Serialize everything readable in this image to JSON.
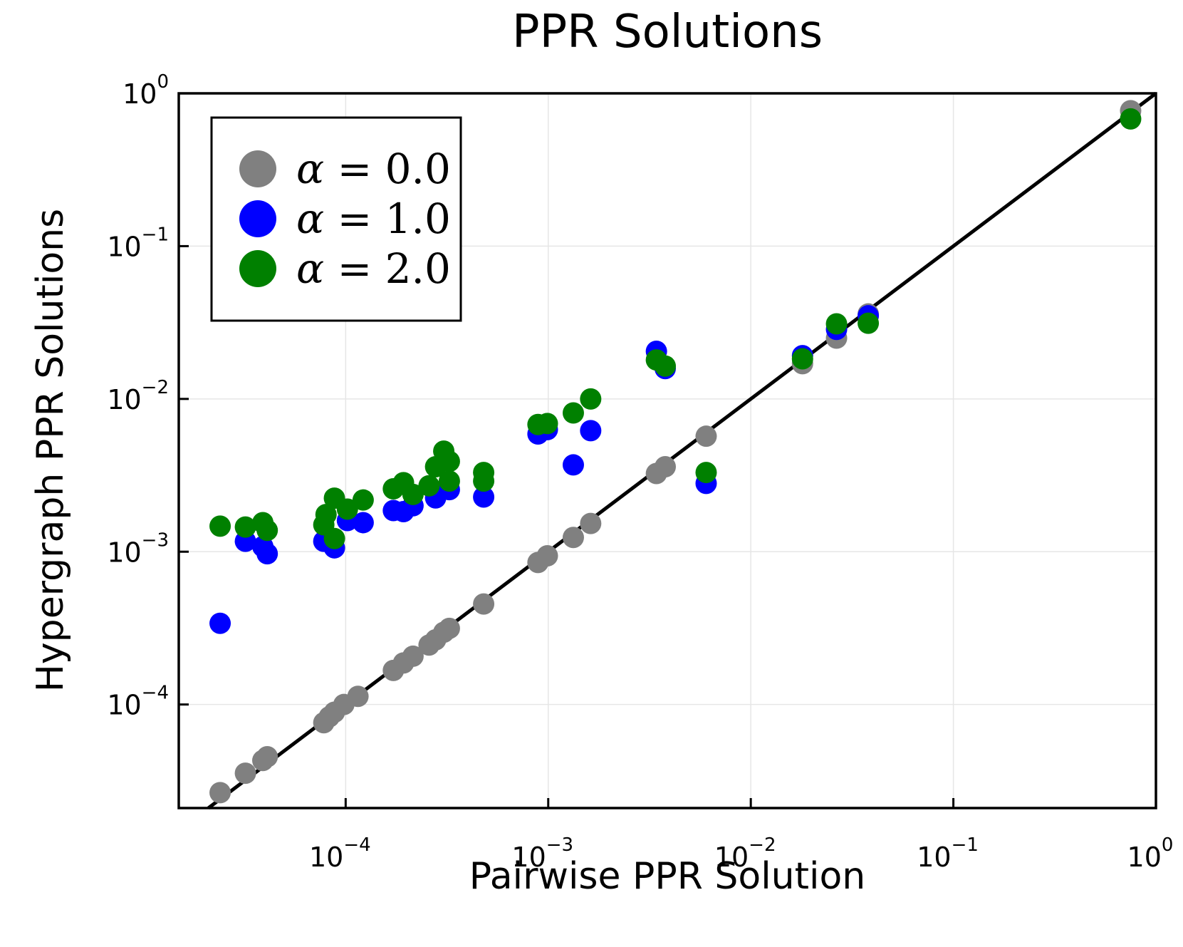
{
  "chart_data": {
    "type": "scatter",
    "title": "PPR Solutions",
    "xlabel": "Pairwise PPR Solution",
    "ylabel": "Hypergraph PPR Solutions",
    "xscale": "log",
    "yscale": "log",
    "xlim": [
      1.5e-05,
      1.0
    ],
    "ylim": [
      2.1e-05,
      1.0
    ],
    "grid": true,
    "legend_position": "top-left",
    "x_ticks": [
      {
        "base": "10",
        "exp": "−4",
        "value": 0.0001
      },
      {
        "base": "10",
        "exp": "−3",
        "value": 0.001
      },
      {
        "base": "10",
        "exp": "−2",
        "value": 0.01
      },
      {
        "base": "10",
        "exp": "−1",
        "value": 0.1
      },
      {
        "base": "10",
        "exp": "0",
        "value": 1.0
      }
    ],
    "y_ticks": [
      {
        "base": "10",
        "exp": "−4",
        "value": 0.0001
      },
      {
        "base": "10",
        "exp": "−3",
        "value": 0.001
      },
      {
        "base": "10",
        "exp": "−2",
        "value": 0.01
      },
      {
        "base": "10",
        "exp": "−1",
        "value": 0.1
      },
      {
        "base": "10",
        "exp": "0",
        "value": 1.0
      }
    ],
    "reference_line": {
      "name": "y = x",
      "color": "#000000"
    },
    "series": [
      {
        "name": "alpha-0.0",
        "legend_symbol": "α",
        "legend_rest": " = 0.0",
        "color": "#808080",
        "points": [
          [
            2.4e-05,
            2.65e-05
          ],
          [
            3.2e-05,
            3.55e-05
          ],
          [
            3.9e-05,
            4.3e-05
          ],
          [
            4.1e-05,
            4.55e-05
          ],
          [
            7.8e-05,
            7.6e-05
          ],
          [
            8.3e-05,
            8.3e-05
          ],
          [
            8.8e-05,
            8.9e-05
          ],
          [
            9.8e-05,
            0.0001
          ],
          [
            0.000115,
            0.000113
          ],
          [
            0.000172,
            0.000167
          ],
          [
            0.000193,
            0.000187
          ],
          [
            0.000215,
            0.000207
          ],
          [
            0.000258,
            0.000245
          ],
          [
            0.000278,
            0.000265
          ],
          [
            0.000305,
            0.000297
          ],
          [
            0.000325,
            0.000315
          ],
          [
            0.00048,
            0.000455
          ],
          [
            0.00089,
            0.00085
          ],
          [
            0.00099,
            0.00094
          ],
          [
            0.00133,
            0.00124
          ],
          [
            0.00162,
            0.00153
          ],
          [
            0.00342,
            0.00325
          ],
          [
            0.00378,
            0.0036
          ],
          [
            0.00602,
            0.0057
          ],
          [
            0.018,
            0.017
          ],
          [
            0.0265,
            0.025
          ],
          [
            0.038,
            0.036
          ],
          [
            0.75,
            0.77
          ]
        ]
      },
      {
        "name": "alpha-1.0",
        "legend_symbol": "α",
        "legend_rest": " = 1.0",
        "color": "#0000ff",
        "points": [
          [
            2.4e-05,
            0.00034
          ],
          [
            3.2e-05,
            0.00117
          ],
          [
            3.9e-05,
            0.00108
          ],
          [
            4.1e-05,
            0.00097
          ],
          [
            7.8e-05,
            0.00117
          ],
          [
            8.8e-05,
            0.00106
          ],
          [
            0.000102,
            0.0016
          ],
          [
            0.000122,
            0.00155
          ],
          [
            0.000172,
            0.00186
          ],
          [
            0.000193,
            0.00183
          ],
          [
            0.000215,
            0.002
          ],
          [
            0.000278,
            0.00225
          ],
          [
            0.000325,
            0.00255
          ],
          [
            0.00048,
            0.00228
          ],
          [
            0.00089,
            0.0059
          ],
          [
            0.00099,
            0.0063
          ],
          [
            0.00133,
            0.0037
          ],
          [
            0.00162,
            0.0062
          ],
          [
            0.00342,
            0.0205
          ],
          [
            0.00378,
            0.0158
          ],
          [
            0.00602,
            0.0028
          ],
          [
            0.018,
            0.0192
          ],
          [
            0.0265,
            0.0285
          ],
          [
            0.038,
            0.035
          ]
        ]
      },
      {
        "name": "alpha-2.0",
        "legend_symbol": "α",
        "legend_rest": " = 2.0",
        "color": "#008000",
        "points": [
          [
            2.4e-05,
            0.00147
          ],
          [
            3.2e-05,
            0.00145
          ],
          [
            3.9e-05,
            0.00155
          ],
          [
            4.1e-05,
            0.00138
          ],
          [
            7.8e-05,
            0.0015
          ],
          [
            8e-05,
            0.00175
          ],
          [
            8.8e-05,
            0.00224
          ],
          [
            8.8e-05,
            0.00122
          ],
          [
            0.000102,
            0.0019
          ],
          [
            0.000122,
            0.00218
          ],
          [
            0.000172,
            0.00258
          ],
          [
            0.000193,
            0.00283
          ],
          [
            0.000215,
            0.00237
          ],
          [
            0.000258,
            0.0027
          ],
          [
            0.000278,
            0.0036
          ],
          [
            0.000305,
            0.00455
          ],
          [
            0.000325,
            0.0039
          ],
          [
            0.000325,
            0.0029
          ],
          [
            0.00048,
            0.0033
          ],
          [
            0.00048,
            0.0029
          ],
          [
            0.00089,
            0.0068
          ],
          [
            0.00099,
            0.0069
          ],
          [
            0.00133,
            0.0081
          ],
          [
            0.00162,
            0.01
          ],
          [
            0.00342,
            0.018
          ],
          [
            0.00378,
            0.0164
          ],
          [
            0.00602,
            0.0033
          ],
          [
            0.018,
            0.0183
          ],
          [
            0.0265,
            0.031
          ],
          [
            0.038,
            0.0313
          ],
          [
            0.75,
            0.68
          ]
        ]
      }
    ]
  }
}
